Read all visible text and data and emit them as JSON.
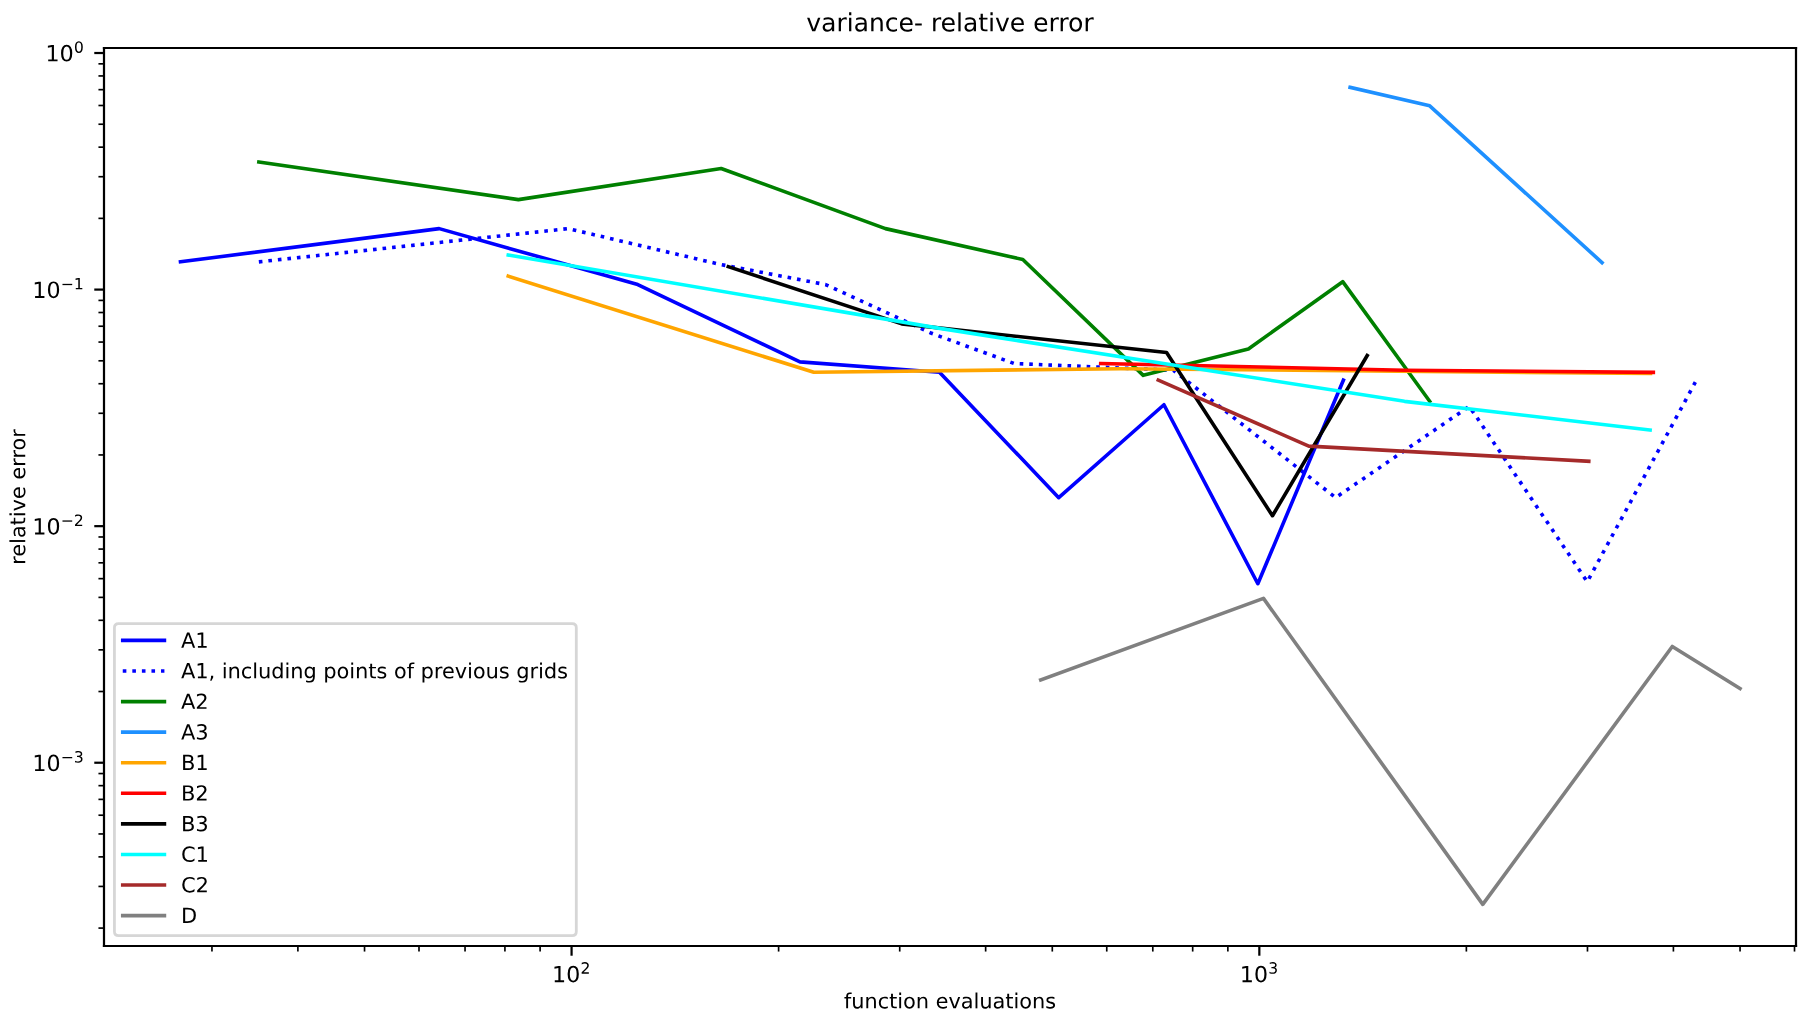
{
  "chart_data": {
    "type": "line",
    "title": "variance- relative error",
    "xlabel": "function evaluations",
    "ylabel": "relative error",
    "log": "xy",
    "xlim": [
      20.9,
      6030
    ],
    "ylim": [
      0.000168,
      1.05
    ],
    "xticks": [
      {
        "value": 100,
        "label": "10$^{2}$"
      },
      {
        "value": 1000,
        "label": "10$^{3}$"
      }
    ],
    "yticks": [
      {
        "value": 0.001,
        "label": "10$^{−3}$"
      },
      {
        "value": 0.01,
        "label": "10$^{−2}$"
      },
      {
        "value": 0.1,
        "label": "10$^{−1}$"
      },
      {
        "value": 1,
        "label": "10$^{0}$"
      }
    ],
    "legend": "bottom left",
    "grid": false,
    "marker": "none",
    "series": [
      {
        "name": "A1",
        "color": "#0000ff",
        "line_style": "solid",
        "x": [
          27.0,
          64.2,
          124.8,
          214.8,
          342.7,
          510.9,
          726.6,
          995,
          1325
        ],
        "values": [
          0.131,
          0.181,
          0.105,
          0.0495,
          0.0447,
          0.0132,
          0.0326,
          0.00571,
          0.0414
        ]
      },
      {
        "name": "A1, including points of previous grids",
        "color": "#0000ff",
        "line_style": "dotted",
        "x": [
          35.1,
          98.9,
          164,
          234,
          333,
          440,
          750,
          1291,
          2020,
          2998,
          4305
        ],
        "values": [
          0.131,
          0.181,
          0.128,
          0.105,
          0.0655,
          0.0487,
          0.0456,
          0.0132,
          0.0321,
          0.00582,
          0.0406
        ]
      },
      {
        "name": "A2",
        "color": "#008000",
        "line_style": "solid",
        "x": [
          35.1,
          83.7,
          165,
          286,
          453,
          678,
          964,
          1322,
          1769
        ],
        "values": [
          0.346,
          0.24,
          0.325,
          0.181,
          0.134,
          0.0434,
          0.0561,
          0.108,
          0.0337
        ]
      },
      {
        "name": "A3",
        "color": "#1e90ff",
        "line_style": "solid",
        "x": [
          1355,
          1769,
          3150
        ],
        "values": [
          0.716,
          0.598,
          0.13
        ]
      },
      {
        "name": "B1",
        "color": "#ffa500",
        "line_style": "solid",
        "x": [
          80.9,
          225,
          628,
          3705
        ],
        "values": [
          0.114,
          0.0447,
          0.0463,
          0.0442
        ]
      },
      {
        "name": "B2",
        "color": "#ff0000",
        "line_style": "solid",
        "x": [
          588,
          1626,
          3740
        ],
        "values": [
          0.0487,
          0.0456,
          0.0447
        ]
      },
      {
        "name": "B3",
        "color": "#000000",
        "line_style": "solid",
        "x": [
          169,
          302,
          733,
          1045,
          1435
        ],
        "values": [
          0.125,
          0.0716,
          0.0542,
          0.01107,
          0.0526
        ]
      },
      {
        "name": "C1",
        "color": "#00ffff",
        "line_style": "solid",
        "x": [
          80.9,
          345,
          1626,
          3700
        ],
        "values": [
          0.14,
          0.0684,
          0.0337,
          0.0255
        ]
      },
      {
        "name": "C2",
        "color": "#a52a2a",
        "line_style": "solid",
        "x": [
          713,
          1180,
          3013
        ],
        "values": [
          0.0414,
          0.0218,
          0.0188
        ]
      },
      {
        "name": "D",
        "color": "#808080",
        "line_style": "solid",
        "x": [
          481,
          1014,
          2113,
          3985,
          5000
        ],
        "values": [
          0.00224,
          0.00495,
          0.000252,
          0.0031,
          0.00206
        ]
      }
    ]
  }
}
